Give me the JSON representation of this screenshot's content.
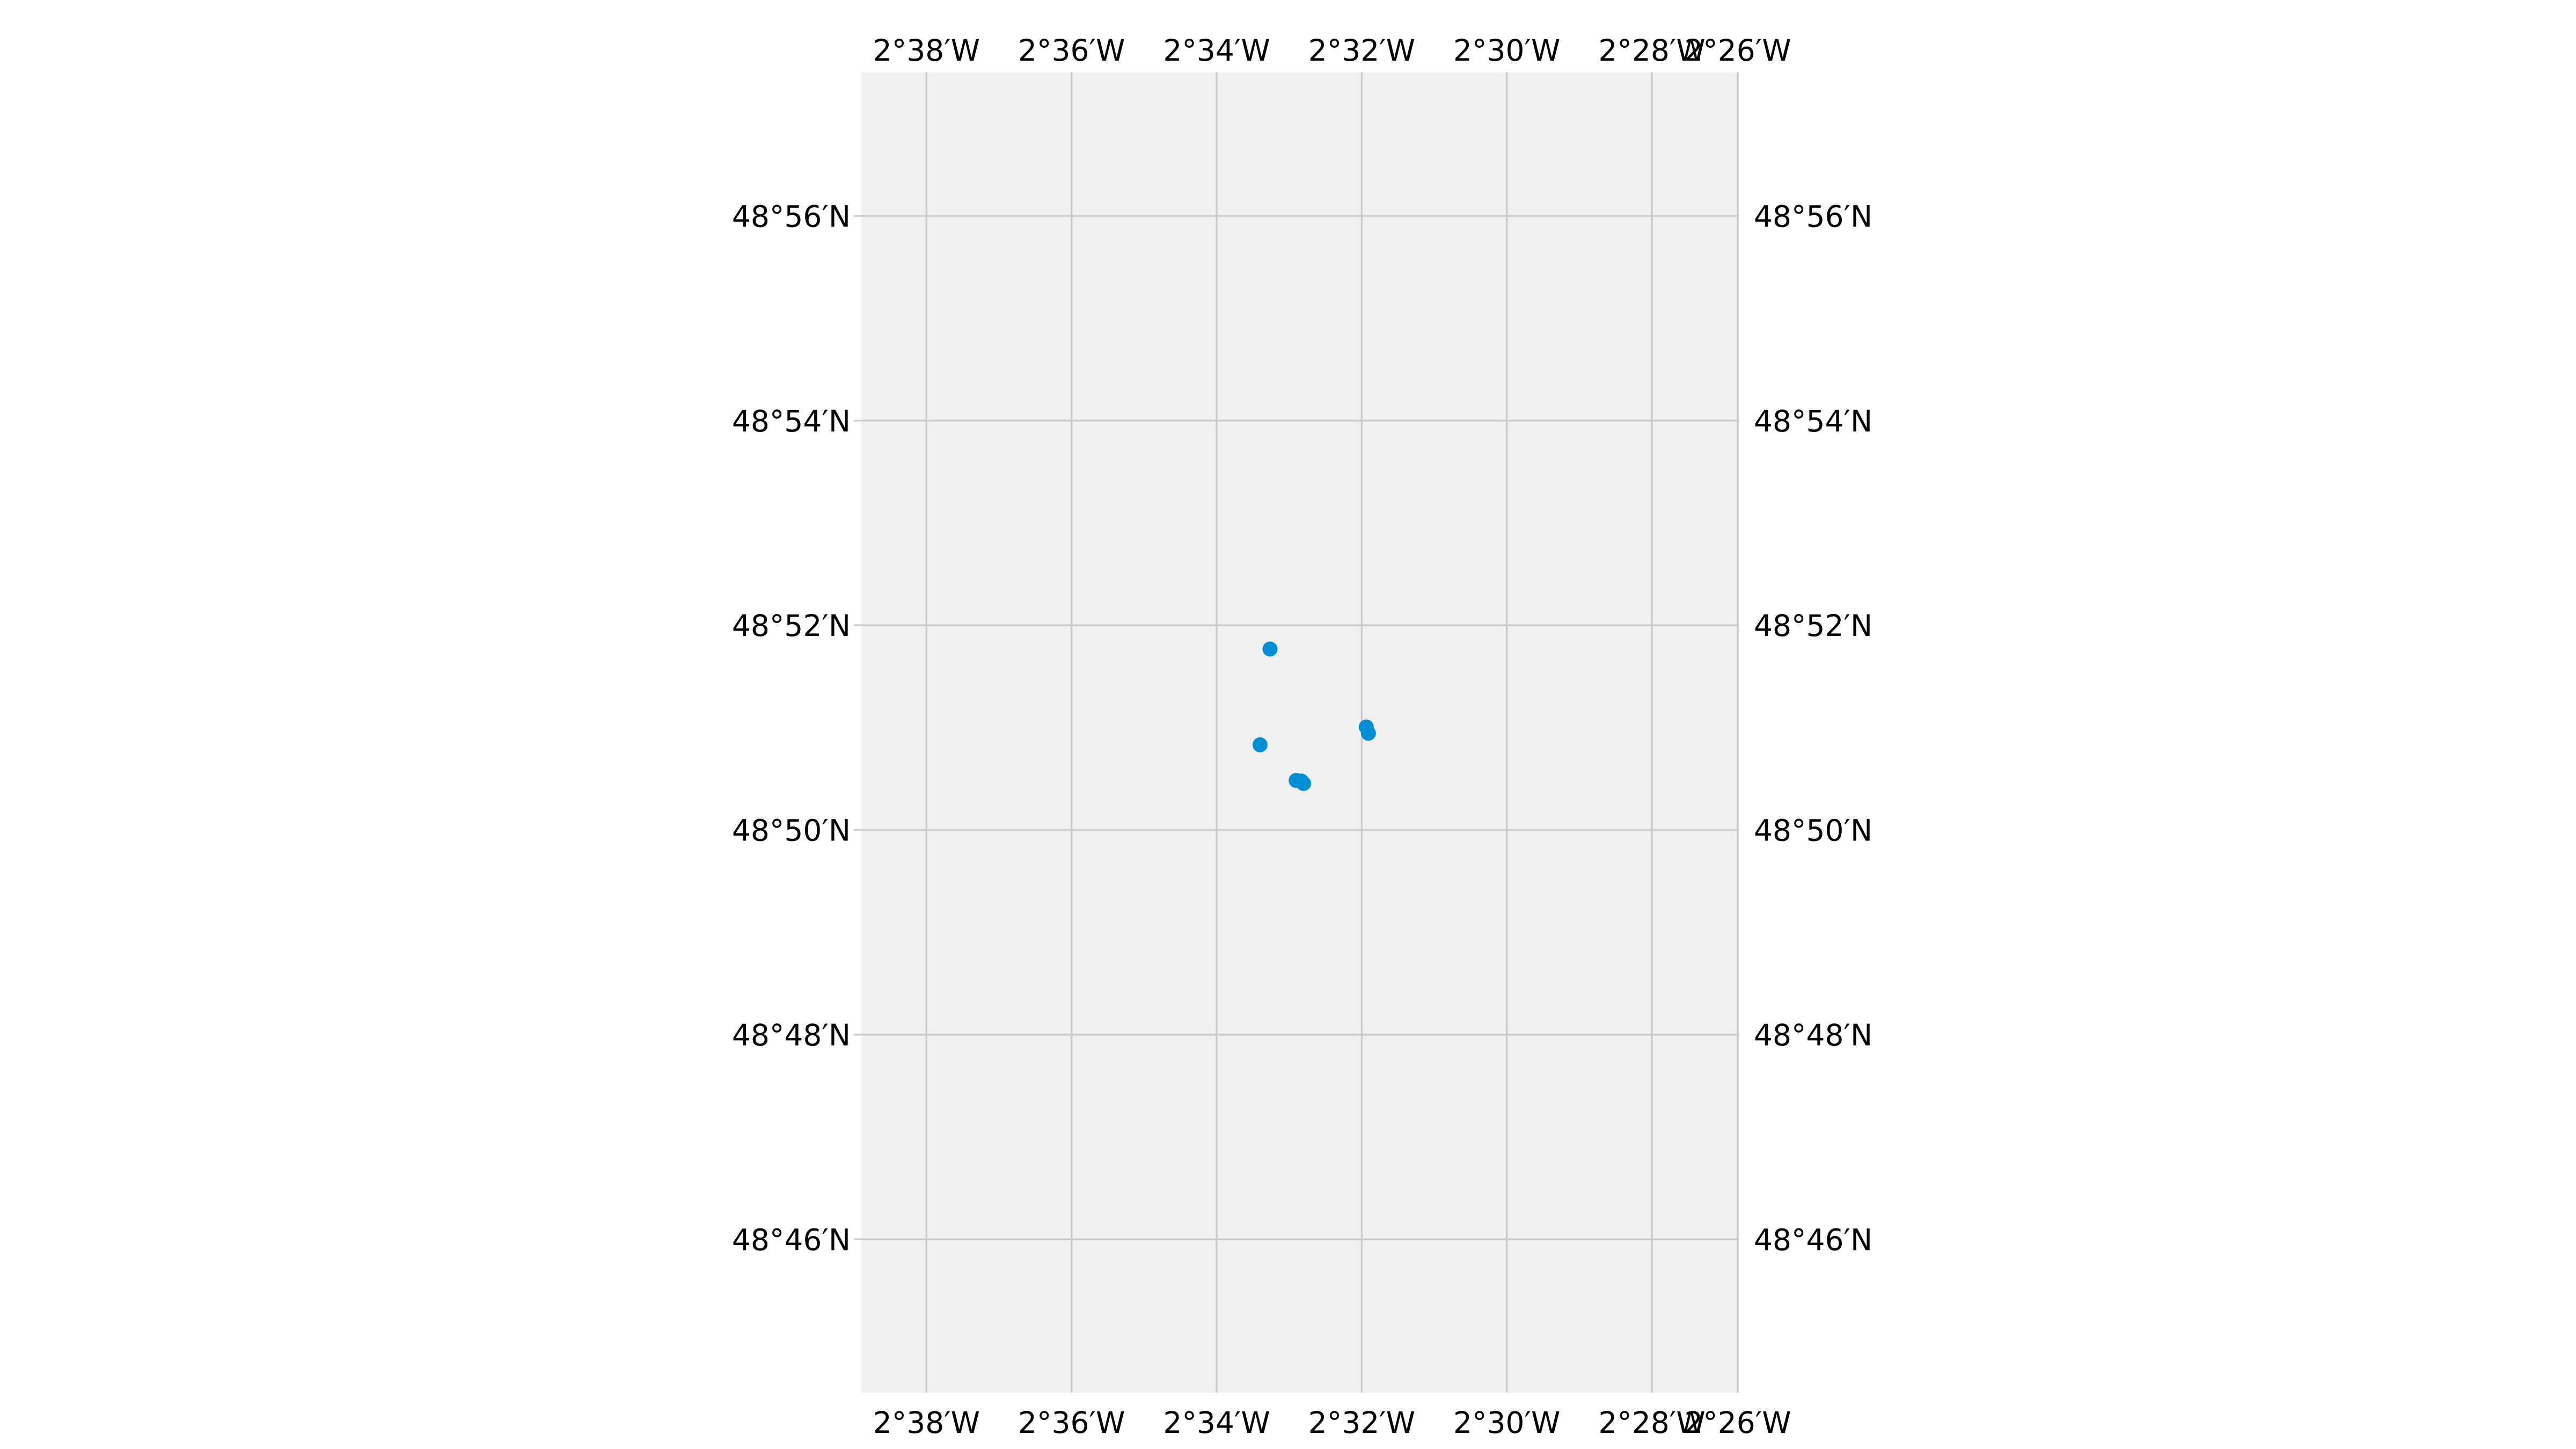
{
  "chart_data": {
    "type": "scatter",
    "title": "",
    "xlabel": "",
    "ylabel": "",
    "projection": "map",
    "background_color": "#f0f0f0",
    "grid": true,
    "grid_color": "#cccccc",
    "marker_color": "#008fd5",
    "legend": "none",
    "x_unit": "degrees longitude (negative = W)",
    "y_unit": "degrees latitude (N)",
    "xlim": [
      -2.6483,
      -2.4467
    ],
    "ylim": [
      48.7417,
      48.9567
    ],
    "x_ticks": [
      {
        "value": -2.633333,
        "label": "2°38′W"
      },
      {
        "value": -2.6,
        "label": "2°36′W"
      },
      {
        "value": -2.566667,
        "label": "2°34′W"
      },
      {
        "value": -2.533333,
        "label": "2°32′W"
      },
      {
        "value": -2.5,
        "label": "2°30′W"
      },
      {
        "value": -2.466667,
        "label": "2°28′W"
      },
      {
        "value": -2.433333,
        "label": "2°26′W"
      }
    ],
    "y_ticks": [
      {
        "value": 48.933333,
        "label": "48°56′N"
      },
      {
        "value": 48.9,
        "label": "48°54′N"
      },
      {
        "value": 48.866667,
        "label": "48°52′N"
      },
      {
        "value": 48.833333,
        "label": "48°50′N"
      },
      {
        "value": 48.8,
        "label": "48°48′N"
      },
      {
        "value": 48.766667,
        "label": "48°46′N"
      }
    ],
    "series": [
      {
        "points": [
          {
            "x": -2.5544,
            "y": 48.8628
          },
          {
            "x": -2.5323,
            "y": 48.8501
          },
          {
            "x": -2.5318,
            "y": 48.8491
          },
          {
            "x": -2.5567,
            "y": 48.8472
          },
          {
            "x": -2.5484,
            "y": 48.8414
          },
          {
            "x": -2.5472,
            "y": 48.8413
          },
          {
            "x": -2.5467,
            "y": 48.8409
          }
        ]
      }
    ]
  }
}
